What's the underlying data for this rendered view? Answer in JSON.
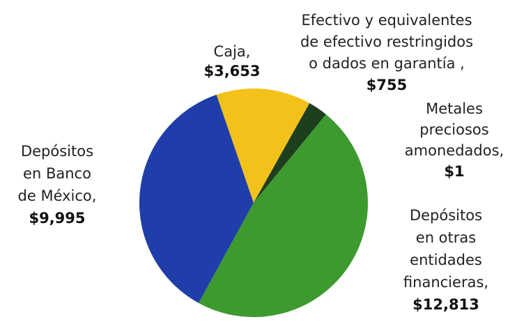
{
  "chart_data": {
    "type": "pie",
    "categories": [
      [
        "Caja,"
      ],
      [
        "Efectivo y equivalentes",
        "de efectivo restringidos",
        "o dados en garantía ,"
      ],
      [
        "Metales",
        "preciosos",
        "amonedados,"
      ],
      [
        "Depósitos",
        "en otras",
        "entidades",
        "financieras,"
      ],
      [
        "Depósitos",
        "en Banco",
        "de México,"
      ]
    ],
    "values": [
      3653,
      755,
      1,
      12813,
      9995
    ],
    "value_labels": [
      "$3,653",
      "$755",
      "$1",
      "$12,813",
      "$9,995"
    ],
    "colors": [
      "#f2c21b",
      "#1d3f1d",
      "#2f7d26",
      "#3c9a2e",
      "#1f3eaa"
    ]
  }
}
